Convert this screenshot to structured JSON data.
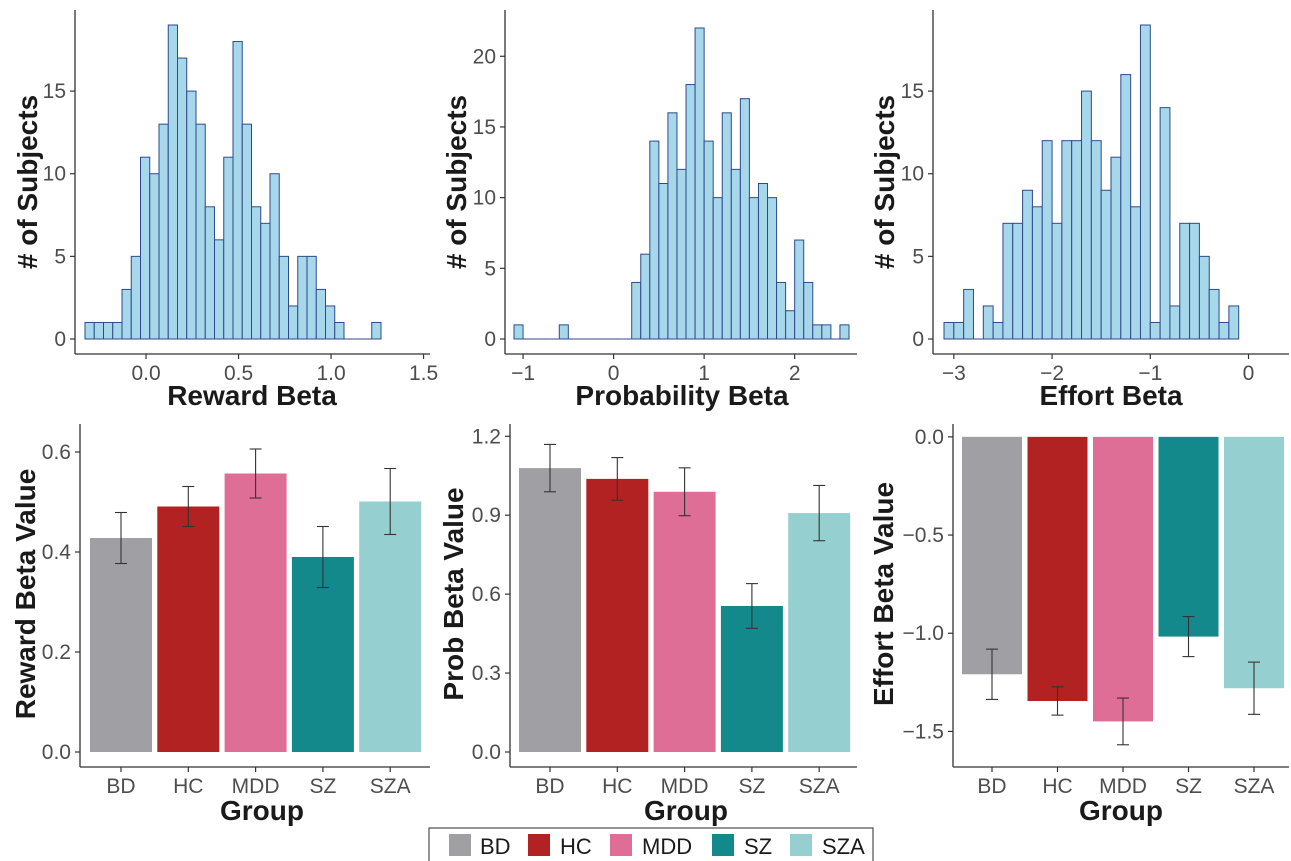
{
  "legend": [
    {
      "label": "BD",
      "color": "#a0a0a4"
    },
    {
      "label": "HC",
      "color": "#b22222"
    },
    {
      "label": "MDD",
      "color": "#de6e95"
    },
    {
      "label": "SZ",
      "color": "#13898c"
    },
    {
      "label": "SZA",
      "color": "#96cfd0"
    }
  ],
  "chart_data": [
    {
      "type": "bar",
      "subtype": "histogram",
      "xlabel": "Reward Beta",
      "ylabel": "# of Subjects",
      "bin_width": 0.05,
      "bin_start": -0.33,
      "counts": [
        1,
        1,
        1,
        1,
        3,
        5,
        11,
        10,
        13,
        19,
        17,
        15,
        13,
        8,
        6,
        11,
        18,
        13,
        8,
        7,
        10,
        5,
        2,
        5,
        5,
        3,
        2,
        1,
        0,
        0,
        0,
        1
      ],
      "xlim": [
        -0.33,
        1.47
      ],
      "ylim": [
        0,
        19
      ],
      "xticks": [
        "0.0",
        "0.5",
        "1.0",
        "1.5"
      ],
      "yticks": [
        "0",
        "5",
        "10",
        "15"
      ],
      "bar_color": "#a6d7ea",
      "edge_color": "#2f4a8a"
    },
    {
      "type": "bar",
      "subtype": "histogram",
      "xlabel": "Probability Beta",
      "ylabel": "# of Subjects",
      "bin_width": 0.1,
      "bin_start": -1.1,
      "counts": [
        1,
        0,
        0,
        0,
        0,
        1,
        0,
        0,
        0,
        0,
        0,
        0,
        0,
        4,
        6,
        14,
        11,
        16,
        12,
        18,
        22,
        14,
        10,
        16,
        12,
        17,
        10,
        11,
        10,
        4,
        2,
        7,
        4,
        1,
        1,
        0,
        1
      ],
      "xlim": [
        -1.1,
        2.6
      ],
      "ylim": [
        0,
        22
      ],
      "xticks": [
        "−1",
        "0",
        "1",
        "2"
      ],
      "yticks": [
        "0",
        "5",
        "10",
        "15",
        "20"
      ],
      "bar_color": "#a6d7ea",
      "edge_color": "#2f4a8a"
    },
    {
      "type": "bar",
      "subtype": "histogram",
      "xlabel": "Effort Beta",
      "ylabel": "# of Subjects",
      "bin_width": 0.1,
      "bin_start": -3.1,
      "counts": [
        1,
        1,
        3,
        0,
        2,
        1,
        7,
        7,
        9,
        8,
        12,
        7,
        12,
        12,
        15,
        12,
        9,
        11,
        16,
        8,
        19,
        1,
        14,
        2,
        7,
        7,
        5,
        3,
        1,
        2
      ],
      "xlim": [
        -3.1,
        0.3
      ],
      "ylim": [
        0,
        19
      ],
      "xticks": [
        "−3",
        "−2",
        "−1",
        "0"
      ],
      "yticks": [
        "0",
        "5",
        "10",
        "15"
      ],
      "bar_color": "#a6d7ea",
      "edge_color": "#2f4a8a"
    },
    {
      "type": "bar",
      "xlabel": "Group",
      "ylabel": "Reward Beta Value",
      "categories": [
        "BD",
        "HC",
        "MDD",
        "SZ",
        "SZA"
      ],
      "values": [
        0.428,
        0.491,
        0.557,
        0.39,
        0.501
      ],
      "errors": [
        0.051,
        0.04,
        0.049,
        0.061,
        0.066
      ],
      "ylim": [
        0,
        0.62
      ],
      "yticks": [
        "0.0",
        "0.2",
        "0.4",
        "0.6"
      ]
    },
    {
      "type": "bar",
      "xlabel": "Group",
      "ylabel": "Prob Beta Value",
      "categories": [
        "BD",
        "HC",
        "MDD",
        "SZ",
        "SZA"
      ],
      "values": [
        1.079,
        1.038,
        0.989,
        0.555,
        0.908
      ],
      "errors": [
        0.09,
        0.081,
        0.091,
        0.085,
        0.105
      ],
      "ylim": [
        0,
        1.22
      ],
      "yticks": [
        "0.0",
        "0.3",
        "0.6",
        "0.9",
        "1.2"
      ]
    },
    {
      "type": "bar",
      "xlabel": "Group",
      "ylabel": "Effort Beta Value",
      "categories": [
        "BD",
        "HC",
        "MDD",
        "SZ",
        "SZA"
      ],
      "values": [
        -1.209,
        -1.345,
        -1.449,
        -1.017,
        -1.28
      ],
      "errors": [
        0.128,
        0.072,
        0.119,
        0.102,
        0.133
      ],
      "ylim": [
        -1.62,
        0.04
      ],
      "yticks": [
        "0.0",
        "−0.5",
        "−1.0",
        "−1.5"
      ]
    }
  ]
}
